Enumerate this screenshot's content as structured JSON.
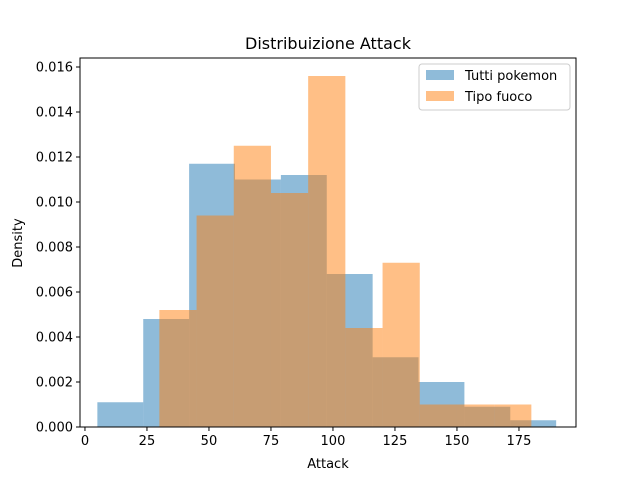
{
  "chart_data": {
    "type": "histogram",
    "title": "Distribuizione Attack",
    "xlabel": "Attack",
    "ylabel": "Density",
    "xlim": [
      -2,
      198
    ],
    "ylim": [
      0,
      0.0164
    ],
    "xticks": [
      0,
      25,
      50,
      75,
      100,
      125,
      150,
      175
    ],
    "yticks": [
      0,
      0.002,
      0.004,
      0.006,
      0.008,
      0.01,
      0.012,
      0.014,
      0.016
    ],
    "ytick_labels": [
      "0.000",
      "0.002",
      "0.004",
      "0.006",
      "0.008",
      "0.010",
      "0.012",
      "0.014",
      "0.016"
    ],
    "grid": false,
    "legend_position": "top-right",
    "series": [
      {
        "name": "Tutti pokemon",
        "color": "#1f77b4",
        "opacity": 0.5,
        "bin_edges": [
          5,
          23.5,
          42,
          60.5,
          79,
          97.5,
          116,
          134.5,
          153,
          171.5,
          190
        ],
        "values": [
          0.0011,
          0.0048,
          0.0117,
          0.011,
          0.0112,
          0.0068,
          0.0031,
          0.002,
          0.0009,
          0.0003
        ]
      },
      {
        "name": "Tipo fuoco",
        "color": "#ff7f0e",
        "opacity": 0.5,
        "bin_edges": [
          30,
          45,
          60,
          75,
          90,
          105,
          120,
          135,
          150,
          165,
          180
        ],
        "values": [
          0.0052,
          0.0094,
          0.0125,
          0.0104,
          0.0156,
          0.0044,
          0.0073,
          0.001,
          0.001,
          0.001
        ]
      }
    ]
  }
}
